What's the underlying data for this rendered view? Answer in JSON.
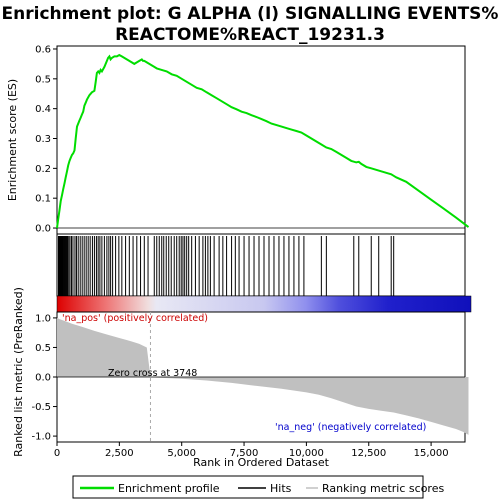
{
  "chart_data": {
    "type": "line",
    "title_lines": [
      "Enrichment plot: G ALPHA (I) SIGNALLING EVENTS%",
      "REACTOME%REACT_19231.3"
    ],
    "xlabel": "Rank in Ordered Dataset",
    "es_ylabel": "Enrichment score (ES)",
    "metric_ylabel": "Ranked list metric (PreRanked)",
    "xlim": [
      0,
      16600
    ],
    "es_ylim": [
      -0.02,
      0.61
    ],
    "metric_ylim": [
      -1.1,
      1.1
    ],
    "x_ticks": [
      0,
      2500,
      5000,
      7500,
      10000,
      12500,
      15000
    ],
    "x_tick_labels": [
      "0",
      "2,500",
      "5,000",
      "7,500",
      "10,000",
      "12,500",
      "15,000"
    ],
    "es_ticks": [
      0.0,
      0.1,
      0.2,
      0.3,
      0.4,
      0.5,
      0.6
    ],
    "es_tick_labels": [
      "0.0",
      "0.1",
      "0.2",
      "0.3",
      "0.4",
      "0.5",
      "0.6"
    ],
    "metric_ticks": [
      1.0,
      0.5,
      0.0,
      -0.5,
      -1.0
    ],
    "metric_tick_labels": [
      "1.0",
      "0.5",
      "0.0",
      "-0.5",
      "-1.0"
    ],
    "enrichment_profile": {
      "name": "Enrichment profile",
      "color": "#00dd00",
      "x": [
        0,
        50,
        100,
        150,
        200,
        250,
        300,
        350,
        400,
        450,
        500,
        550,
        600,
        650,
        700,
        750,
        800,
        850,
        900,
        950,
        1000,
        1050,
        1100,
        1150,
        1200,
        1300,
        1400,
        1500,
        1550,
        1600,
        1650,
        1700,
        1750,
        1800,
        1900,
        2000,
        2050,
        2100,
        2150,
        2200,
        2300,
        2400,
        2500,
        2600,
        2700,
        2800,
        2900,
        3000,
        3100,
        3200,
        3300,
        3400,
        3450,
        3500,
        3600,
        3700,
        3800,
        3900,
        4000,
        4200,
        4400,
        4600,
        4800,
        5000,
        5200,
        5400,
        5600,
        5800,
        6000,
        6200,
        6400,
        6600,
        6800,
        7000,
        7200,
        7400,
        7600,
        7800,
        8000,
        8200,
        8400,
        8600,
        8800,
        9000,
        9200,
        9400,
        9600,
        9800,
        10000,
        10200,
        10400,
        10600,
        10800,
        11000,
        11200,
        11400,
        11600,
        11800,
        12000,
        12100,
        12200,
        12400,
        12600,
        12800,
        13000,
        13200,
        13400,
        13500,
        13600,
        14000,
        14500,
        15000,
        15500,
        16000,
        16500
      ],
      "y": [
        0.0,
        0.03,
        0.06,
        0.09,
        0.11,
        0.13,
        0.15,
        0.17,
        0.19,
        0.21,
        0.225,
        0.235,
        0.245,
        0.25,
        0.26,
        0.3,
        0.34,
        0.35,
        0.36,
        0.37,
        0.38,
        0.39,
        0.41,
        0.42,
        0.43,
        0.445,
        0.455,
        0.46,
        0.49,
        0.52,
        0.525,
        0.52,
        0.53,
        0.525,
        0.54,
        0.56,
        0.57,
        0.575,
        0.565,
        0.57,
        0.575,
        0.575,
        0.58,
        0.575,
        0.57,
        0.565,
        0.56,
        0.555,
        0.55,
        0.555,
        0.56,
        0.565,
        0.56,
        0.56,
        0.555,
        0.55,
        0.545,
        0.54,
        0.535,
        0.53,
        0.525,
        0.515,
        0.51,
        0.5,
        0.49,
        0.48,
        0.47,
        0.465,
        0.455,
        0.445,
        0.435,
        0.425,
        0.415,
        0.405,
        0.398,
        0.39,
        0.385,
        0.378,
        0.372,
        0.365,
        0.358,
        0.35,
        0.345,
        0.34,
        0.335,
        0.33,
        0.325,
        0.32,
        0.31,
        0.3,
        0.29,
        0.28,
        0.27,
        0.265,
        0.255,
        0.245,
        0.235,
        0.225,
        0.22,
        0.222,
        0.215,
        0.205,
        0.2,
        0.195,
        0.19,
        0.185,
        0.18,
        0.175,
        0.17,
        0.155,
        0.125,
        0.095,
        0.065,
        0.035,
        0.003
      ]
    },
    "hits": {
      "name": "Hits",
      "x": [
        60,
        90,
        120,
        160,
        190,
        220,
        260,
        300,
        340,
        380,
        420,
        470,
        520,
        580,
        640,
        720,
        780,
        850,
        930,
        1010,
        1090,
        1170,
        1250,
        1330,
        1420,
        1500,
        1580,
        1650,
        1720,
        1800,
        1900,
        2000,
        2080,
        2150,
        2230,
        2350,
        2480,
        2600,
        2750,
        2900,
        3050,
        3200,
        3350,
        3500,
        3650,
        3900,
        4000,
        4100,
        4200,
        4280,
        4380,
        4480,
        4580,
        4700,
        4800,
        4900,
        4980,
        5050,
        5120,
        5200,
        5280,
        5400,
        5550,
        5700,
        5850,
        5950,
        6050,
        6150,
        6300,
        6500,
        6650,
        6800,
        7000,
        7150,
        7300,
        7500,
        7700,
        7900,
        8100,
        8300,
        8500,
        8700,
        8900,
        9100,
        9300,
        9500,
        9700,
        9900,
        10600,
        10800,
        11900,
        12100,
        12600,
        12900,
        13400,
        13500
      ]
    },
    "ranking_metric": {
      "name": "Ranking metric scores",
      "color": "#c0c0c0",
      "x": [
        0,
        100,
        300,
        600,
        1000,
        1500,
        2000,
        2500,
        3000,
        3300,
        3600,
        3748,
        4000,
        5000,
        6000,
        7000,
        8000,
        9000,
        10000,
        10500,
        11000,
        11500,
        12000,
        12500,
        13000,
        13500,
        14000,
        14500,
        15000,
        15500,
        16000,
        16300,
        16500
      ],
      "y": [
        1.0,
        0.98,
        0.95,
        0.9,
        0.85,
        0.78,
        0.72,
        0.66,
        0.6,
        0.56,
        0.5,
        0.0,
        -0.01,
        -0.03,
        -0.06,
        -0.1,
        -0.15,
        -0.2,
        -0.26,
        -0.3,
        -0.36,
        -0.43,
        -0.5,
        -0.54,
        -0.57,
        -0.6,
        -0.65,
        -0.7,
        -0.76,
        -0.82,
        -0.88,
        -0.93,
        -0.98
      ]
    },
    "zero_cross_x": 3748,
    "annotations": {
      "pos": "'na_pos' (positively correlated)",
      "neg": "'na_neg' (negatively correlated)",
      "zero": "Zero cross at 3748"
    },
    "colors": {
      "pos_annotation": "#cc0000",
      "neg_annotation": "#0000cc",
      "hit": "#000000",
      "gradient_red": "#dd0000",
      "gradient_blue": "#0000cc"
    },
    "legend": {
      "items": [
        {
          "label": "Enrichment profile",
          "color": "#00dd00",
          "kind": "line"
        },
        {
          "label": "Hits",
          "color": "#000000",
          "kind": "line"
        },
        {
          "label": "Ranking metric scores",
          "color": "#c0c0c0",
          "kind": "line"
        }
      ]
    }
  }
}
